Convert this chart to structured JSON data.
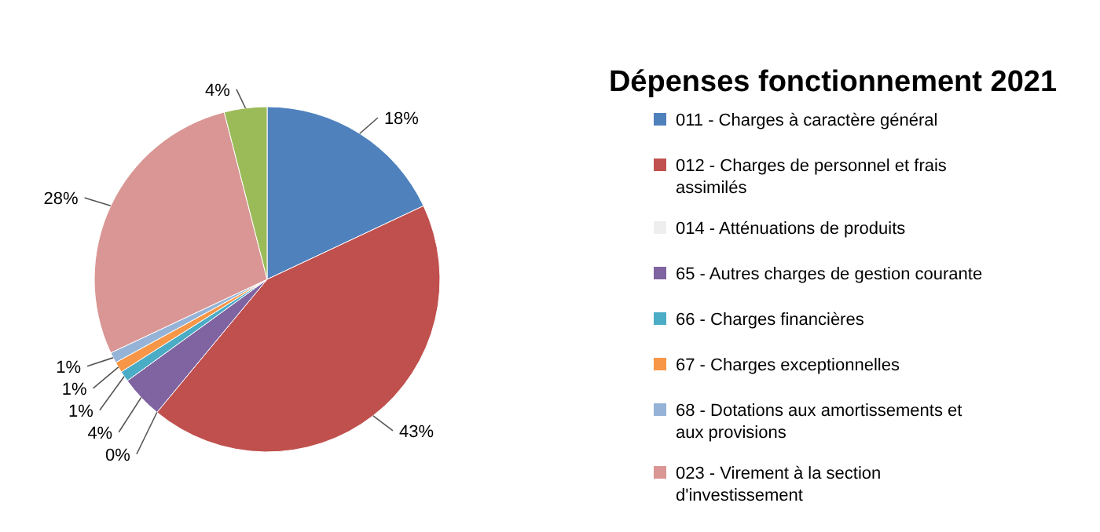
{
  "chart_data": {
    "type": "pie",
    "title": "Dépenses fonctionnement 2021",
    "categories": [
      "011 - Charges à caractère général",
      "012 - Charges de personnel et frais assimilés",
      "014 - Atténuations de produits",
      "65 - Autres charges de gestion courante",
      "66 - Charges financières",
      "67 - Charges exceptionnelles",
      "68 - Dotations  aux amortissements  et aux provisions",
      "023 - Virement à la section d'investissement",
      null
    ],
    "values": [
      18,
      43,
      0,
      4,
      1,
      1,
      1,
      28,
      4
    ],
    "colors": [
      "#4f81bd",
      "#c0504d",
      "#eeeeee",
      "#8064a2",
      "#4bacc6",
      "#f79646",
      "#95b3d7",
      "#d99694",
      "#9bbb59"
    ],
    "value_labels": [
      "18%",
      "43%",
      "0%",
      "4%",
      "1%",
      "1%",
      "1%",
      "28%",
      "4%"
    ],
    "legend": "right"
  }
}
